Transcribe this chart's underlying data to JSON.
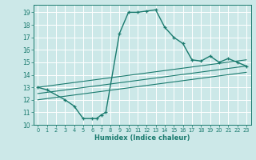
{
  "xlabel": "Humidex (Indice chaleur)",
  "bg_color": "#cce8e8",
  "grid_color": "#ffffff",
  "line_color": "#1a7a6e",
  "xlim": [
    -0.5,
    23.5
  ],
  "ylim": [
    10,
    19.6
  ],
  "yticks": [
    10,
    11,
    12,
    13,
    14,
    15,
    16,
    17,
    18,
    19
  ],
  "xticks": [
    0,
    1,
    2,
    3,
    4,
    5,
    6,
    7,
    8,
    9,
    10,
    11,
    12,
    13,
    14,
    15,
    16,
    17,
    18,
    19,
    20,
    21,
    22,
    23
  ],
  "curve_x": [
    0,
    1,
    3,
    4,
    5,
    6,
    6.5,
    7,
    7.5,
    9,
    10,
    11,
    12,
    13,
    14,
    15,
    16,
    17,
    18,
    19,
    20,
    21,
    22,
    23
  ],
  "curve_y": [
    13.0,
    12.8,
    12.0,
    11.5,
    10.5,
    10.5,
    10.5,
    10.8,
    11.0,
    17.3,
    19.0,
    19.0,
    19.1,
    19.2,
    17.8,
    17.0,
    16.5,
    15.2,
    15.1,
    15.5,
    15.0,
    15.3,
    15.0,
    14.7
  ],
  "line1_x": [
    0,
    23
  ],
  "line1_y": [
    13.0,
    15.2
  ],
  "line2_x": [
    0,
    23
  ],
  "line2_y": [
    12.5,
    14.7
  ],
  "line3_x": [
    0,
    23
  ],
  "line3_y": [
    12.0,
    14.2
  ]
}
